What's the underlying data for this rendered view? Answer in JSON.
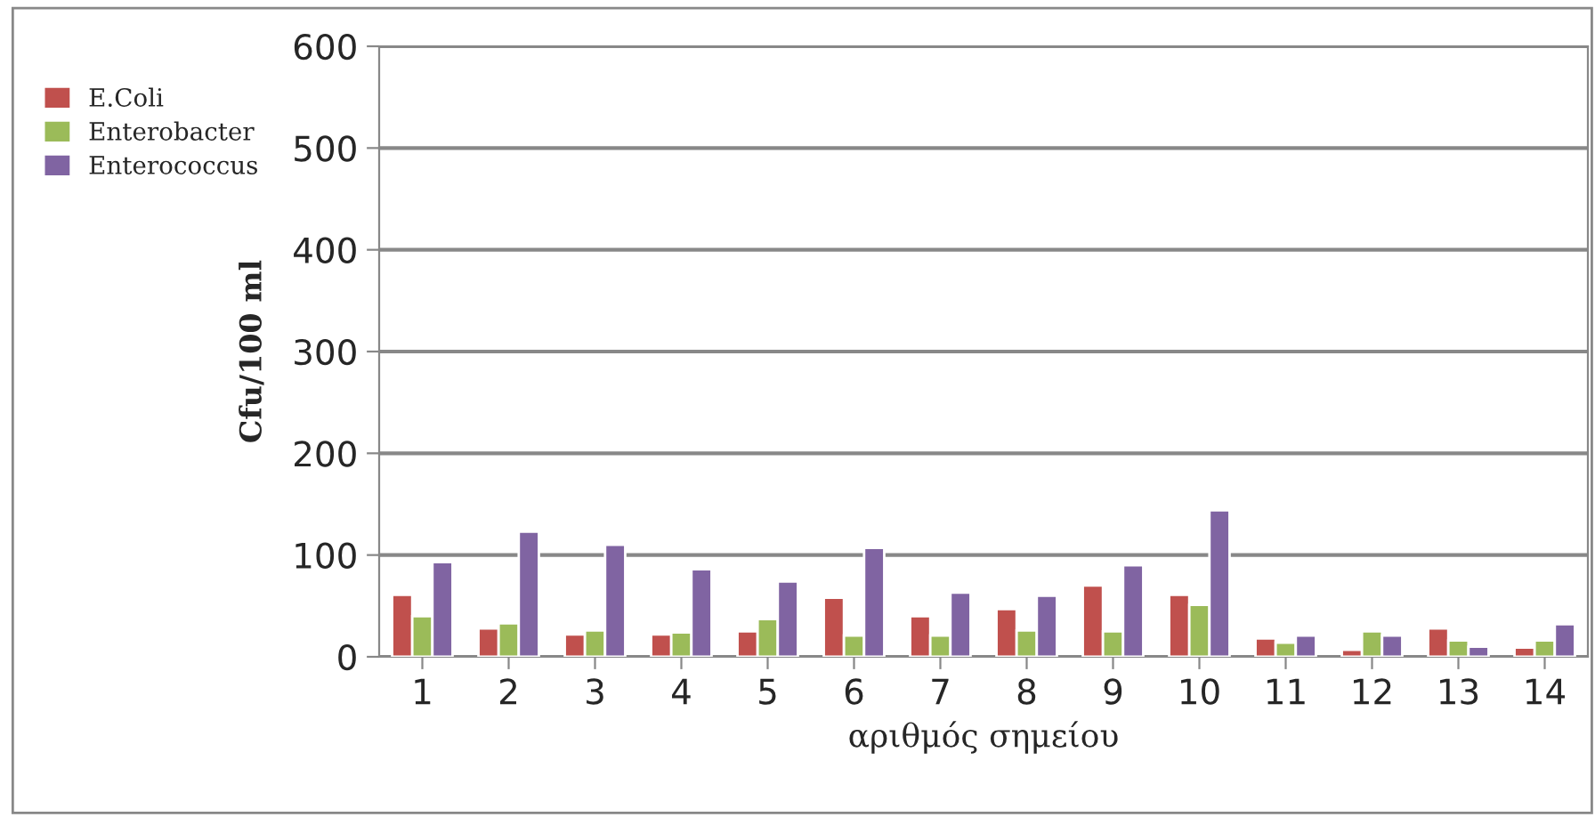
{
  "chart_data": {
    "type": "bar",
    "xlabel": "αριθμός σημείου",
    "ylabel": "Cfu/100 ml",
    "categories": [
      "1",
      "2",
      "3",
      "4",
      "5",
      "6",
      "7",
      "8",
      "9",
      "10",
      "11",
      "12",
      "13",
      "14"
    ],
    "series": [
      {
        "name": "E.Coli",
        "color": "#c0504d",
        "values": [
          61,
          28,
          22,
          22,
          25,
          58,
          40,
          47,
          70,
          61,
          18,
          7,
          28,
          9
        ]
      },
      {
        "name": "Enterobacter",
        "color": "#9bbb59",
        "values": [
          40,
          33,
          26,
          24,
          37,
          21,
          21,
          26,
          25,
          51,
          14,
          25,
          16,
          16
        ]
      },
      {
        "name": "Enterococcus",
        "color": "#8064a2",
        "values": [
          93,
          123,
          110,
          86,
          74,
          107,
          63,
          60,
          90,
          144,
          21,
          21,
          10,
          32
        ]
      }
    ],
    "ylim": [
      0,
      600
    ],
    "yticks": [
      0,
      100,
      200,
      300,
      400,
      500,
      600
    ],
    "grid": "y",
    "legend": "left"
  }
}
